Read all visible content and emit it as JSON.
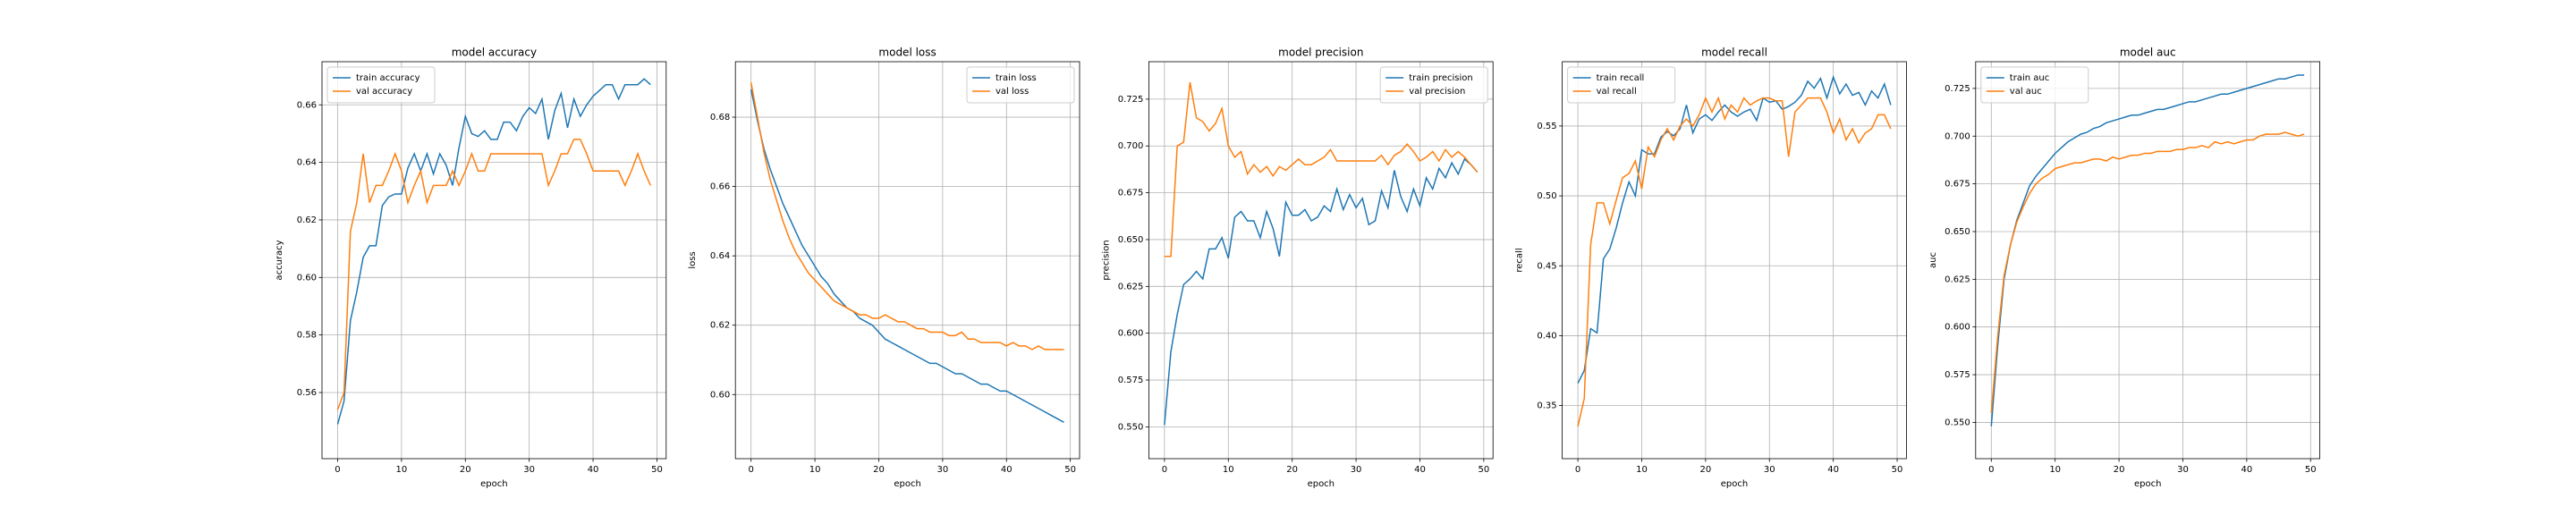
{
  "chart_data": [
    {
      "type": "line",
      "title": "model accuracy",
      "xlabel": "epoch",
      "ylabel": "accuracy",
      "x": [
        0,
        1,
        2,
        3,
        4,
        5,
        6,
        7,
        8,
        9,
        10,
        11,
        12,
        13,
        14,
        15,
        16,
        17,
        18,
        19,
        20,
        21,
        22,
        23,
        24,
        25,
        26,
        27,
        28,
        29,
        30,
        31,
        32,
        33,
        34,
        35,
        36,
        37,
        38,
        39,
        40,
        41,
        42,
        43,
        44,
        45,
        46,
        47,
        48,
        49
      ],
      "series": [
        {
          "name": "train accuracy",
          "color": "#1f77b4",
          "values": [
            0.549,
            0.557,
            0.585,
            0.595,
            0.607,
            0.611,
            0.611,
            0.625,
            0.628,
            0.629,
            0.629,
            0.638,
            0.643,
            0.637,
            0.643,
            0.636,
            0.643,
            0.639,
            0.632,
            0.645,
            0.656,
            0.65,
            0.649,
            0.651,
            0.648,
            0.648,
            0.654,
            0.654,
            0.651,
            0.656,
            0.659,
            0.657,
            0.662,
            0.648,
            0.658,
            0.664,
            0.652,
            0.662,
            0.656,
            0.66,
            0.663,
            0.665,
            0.667,
            0.667,
            0.662,
            0.667,
            0.667,
            0.667,
            0.669,
            0.667
          ]
        },
        {
          "name": "val accuracy",
          "color": "#ff7f0e",
          "values": [
            0.554,
            0.56,
            0.616,
            0.626,
            0.643,
            0.626,
            0.632,
            0.632,
            0.637,
            0.643,
            0.637,
            0.626,
            0.632,
            0.637,
            0.626,
            0.632,
            0.632,
            0.632,
            0.637,
            0.632,
            0.637,
            0.643,
            0.637,
            0.637,
            0.643,
            0.643,
            0.643,
            0.643,
            0.643,
            0.643,
            0.643,
            0.643,
            0.643,
            0.632,
            0.637,
            0.643,
            0.643,
            0.648,
            0.648,
            0.643,
            0.637,
            0.637,
            0.637,
            0.637,
            0.637,
            0.632,
            0.637,
            0.643,
            0.637,
            0.632
          ]
        }
      ],
      "xlim": [
        -2.45,
        51.45
      ],
      "xticks": [
        0,
        10,
        20,
        30,
        40,
        50
      ],
      "ylim": [
        0.537,
        0.675
      ],
      "yticks": [
        0.56,
        0.58,
        {
          "value": 0.6,
          "label": "0.60"
        },
        0.62,
        0.64,
        0.66
      ],
      "grid": true,
      "legend": "upper left"
    },
    {
      "type": "line",
      "title": "model loss",
      "xlabel": "epoch",
      "ylabel": "loss",
      "x": [
        0,
        1,
        2,
        3,
        4,
        5,
        6,
        7,
        8,
        9,
        10,
        11,
        12,
        13,
        14,
        15,
        16,
        17,
        18,
        19,
        20,
        21,
        22,
        23,
        24,
        25,
        26,
        27,
        28,
        29,
        30,
        31,
        32,
        33,
        34,
        35,
        36,
        37,
        38,
        39,
        40,
        41,
        42,
        43,
        44,
        45,
        46,
        47,
        48,
        49
      ],
      "series": [
        {
          "name": "train loss",
          "color": "#1f77b4",
          "values": [
            0.688,
            0.679,
            0.671,
            0.665,
            0.66,
            0.655,
            0.651,
            0.647,
            0.643,
            0.64,
            0.637,
            0.634,
            0.632,
            0.629,
            0.627,
            0.625,
            0.624,
            0.622,
            0.621,
            0.62,
            0.618,
            0.616,
            0.615,
            0.614,
            0.613,
            0.612,
            0.611,
            0.61,
            0.609,
            0.609,
            0.608,
            0.607,
            0.606,
            0.606,
            0.605,
            0.604,
            0.603,
            0.603,
            0.602,
            0.601,
            0.601,
            0.6,
            0.599,
            0.598,
            0.597,
            0.596,
            0.595,
            0.594,
            0.593,
            0.592
          ]
        },
        {
          "name": "val loss",
          "color": "#ff7f0e",
          "values": [
            0.69,
            0.68,
            0.67,
            0.662,
            0.656,
            0.65,
            0.645,
            0.641,
            0.638,
            0.635,
            0.633,
            0.631,
            0.629,
            0.627,
            0.626,
            0.625,
            0.624,
            0.623,
            0.623,
            0.622,
            0.622,
            0.623,
            0.622,
            0.621,
            0.621,
            0.62,
            0.619,
            0.619,
            0.618,
            0.618,
            0.618,
            0.617,
            0.617,
            0.618,
            0.616,
            0.616,
            0.615,
            0.615,
            0.615,
            0.615,
            0.614,
            0.615,
            0.614,
            0.614,
            0.613,
            0.614,
            0.613,
            0.613,
            0.613,
            0.613
          ]
        }
      ],
      "xlim": [
        -2.45,
        51.45
      ],
      "xticks": [
        0,
        10,
        20,
        30,
        40,
        50
      ],
      "ylim": [
        0.5815,
        0.696
      ],
      "yticks": [
        {
          "value": 0.6,
          "label": "0.60"
        },
        0.62,
        0.64,
        0.66,
        0.68
      ],
      "grid": true,
      "legend": "upper right"
    },
    {
      "type": "line",
      "title": "model precision",
      "xlabel": "epoch",
      "ylabel": "precision",
      "x": [
        0,
        1,
        2,
        3,
        4,
        5,
        6,
        7,
        8,
        9,
        10,
        11,
        12,
        13,
        14,
        15,
        16,
        17,
        18,
        19,
        20,
        21,
        22,
        23,
        24,
        25,
        26,
        27,
        28,
        29,
        30,
        31,
        32,
        33,
        34,
        35,
        36,
        37,
        38,
        39,
        40,
        41,
        42,
        43,
        44,
        45,
        46,
        47,
        48,
        49
      ],
      "series": [
        {
          "name": "train precision",
          "color": "#1f77b4",
          "values": [
            0.551,
            0.59,
            0.61,
            0.626,
            0.629,
            0.633,
            0.629,
            0.645,
            0.645,
            0.651,
            0.64,
            0.662,
            0.665,
            0.66,
            0.66,
            0.651,
            0.665,
            0.656,
            0.641,
            0.67,
            0.663,
            0.663,
            0.666,
            0.66,
            0.662,
            0.668,
            0.665,
            0.677,
            0.666,
            0.674,
            0.667,
            0.672,
            0.658,
            0.66,
            0.676,
            0.667,
            0.687,
            0.673,
            0.665,
            0.677,
            0.668,
            0.683,
            0.677,
            0.688,
            0.683,
            0.691,
            0.685,
            0.693,
            0.69,
            0.686
          ]
        },
        {
          "name": "val precision",
          "color": "#ff7f0e",
          "values": [
            0.641,
            0.641,
            0.7,
            0.702,
            0.734,
            0.715,
            0.713,
            0.708,
            0.712,
            0.72,
            0.7,
            0.694,
            0.697,
            0.685,
            0.69,
            0.686,
            0.689,
            0.684,
            0.689,
            0.687,
            0.69,
            0.693,
            0.69,
            0.69,
            0.692,
            0.694,
            0.698,
            0.692,
            0.692,
            0.692,
            0.692,
            0.692,
            0.692,
            0.692,
            0.695,
            0.69,
            0.695,
            0.697,
            0.701,
            0.697,
            0.692,
            0.694,
            0.697,
            0.692,
            0.698,
            0.694,
            0.697,
            0.694,
            0.69,
            0.686
          ]
        }
      ],
      "xlim": [
        -2.45,
        51.45
      ],
      "xticks": [
        0,
        10,
        20,
        30,
        40,
        50
      ],
      "ylim": [
        0.533,
        0.745
      ],
      "yticks": [
        {
          "value": 0.55,
          "label": "0.550"
        },
        0.575,
        {
          "value": 0.6,
          "label": "0.600"
        },
        0.625,
        {
          "value": 0.65,
          "label": "0.650"
        },
        0.675,
        {
          "value": 0.7,
          "label": "0.700"
        },
        0.725
      ],
      "grid": true,
      "legend": "upper right"
    },
    {
      "type": "line",
      "title": "model recall",
      "xlabel": "epoch",
      "ylabel": "recall",
      "x": [
        0,
        1,
        2,
        3,
        4,
        5,
        6,
        7,
        8,
        9,
        10,
        11,
        12,
        13,
        14,
        15,
        16,
        17,
        18,
        19,
        20,
        21,
        22,
        23,
        24,
        25,
        26,
        27,
        28,
        29,
        30,
        31,
        32,
        33,
        34,
        35,
        36,
        37,
        38,
        39,
        40,
        41,
        42,
        43,
        44,
        45,
        46,
        47,
        48,
        49
      ],
      "series": [
        {
          "name": "train recall",
          "color": "#1f77b4",
          "values": [
            0.366,
            0.375,
            0.405,
            0.402,
            0.455,
            0.462,
            0.477,
            0.495,
            0.51,
            0.5,
            0.533,
            0.53,
            0.53,
            0.542,
            0.546,
            0.543,
            0.548,
            0.565,
            0.545,
            0.555,
            0.558,
            0.554,
            0.56,
            0.565,
            0.56,
            0.557,
            0.56,
            0.562,
            0.554,
            0.57,
            0.567,
            0.568,
            0.562,
            0.564,
            0.567,
            0.572,
            0.582,
            0.577,
            0.584,
            0.57,
            0.585,
            0.573,
            0.58,
            0.572,
            0.574,
            0.565,
            0.575,
            0.57,
            0.58,
            0.565
          ]
        },
        {
          "name": "val recall",
          "color": "#ff7f0e",
          "values": [
            0.335,
            0.355,
            0.465,
            0.495,
            0.495,
            0.48,
            0.497,
            0.513,
            0.516,
            0.525,
            0.505,
            0.535,
            0.528,
            0.54,
            0.548,
            0.54,
            0.55,
            0.555,
            0.55,
            0.558,
            0.57,
            0.56,
            0.57,
            0.555,
            0.565,
            0.56,
            0.57,
            0.565,
            0.568,
            0.57,
            0.57,
            0.568,
            0.568,
            0.528,
            0.56,
            0.565,
            0.57,
            0.57,
            0.57,
            0.56,
            0.545,
            0.555,
            0.54,
            0.548,
            0.538,
            0.545,
            0.548,
            0.558,
            0.558,
            0.548
          ]
        }
      ],
      "xlim": [
        -2.45,
        51.45
      ],
      "xticks": [
        0,
        10,
        20,
        30,
        40,
        50
      ],
      "ylim": [
        0.312,
        0.596
      ],
      "yticks": [
        0.35,
        {
          "value": 0.4,
          "label": "0.40"
        },
        0.45,
        {
          "value": 0.5,
          "label": "0.50"
        },
        0.55
      ],
      "grid": true,
      "legend": "upper left"
    },
    {
      "type": "line",
      "title": "model auc",
      "xlabel": "epoch",
      "ylabel": "auc",
      "x": [
        0,
        1,
        2,
        3,
        4,
        5,
        6,
        7,
        8,
        9,
        10,
        11,
        12,
        13,
        14,
        15,
        16,
        17,
        18,
        19,
        20,
        21,
        22,
        23,
        24,
        25,
        26,
        27,
        28,
        29,
        30,
        31,
        32,
        33,
        34,
        35,
        36,
        37,
        38,
        39,
        40,
        41,
        42,
        43,
        44,
        45,
        46,
        47,
        48,
        49
      ],
      "series": [
        {
          "name": "train auc",
          "color": "#1f77b4",
          "values": [
            0.548,
            0.59,
            0.625,
            0.643,
            0.656,
            0.665,
            0.674,
            0.679,
            0.683,
            0.687,
            0.691,
            0.694,
            0.697,
            0.699,
            0.701,
            0.702,
            0.704,
            0.705,
            0.707,
            0.708,
            0.709,
            0.71,
            0.711,
            0.711,
            0.712,
            0.713,
            0.714,
            0.714,
            0.715,
            0.716,
            0.717,
            0.718,
            0.718,
            0.719,
            0.72,
            0.721,
            0.722,
            0.722,
            0.723,
            0.724,
            0.725,
            0.726,
            0.727,
            0.728,
            0.729,
            0.73,
            0.73,
            0.731,
            0.732,
            0.732
          ]
        },
        {
          "name": "val auc",
          "color": "#ff7f0e",
          "values": [
            0.555,
            0.595,
            0.627,
            0.643,
            0.655,
            0.663,
            0.67,
            0.675,
            0.678,
            0.68,
            0.683,
            0.684,
            0.685,
            0.686,
            0.686,
            0.687,
            0.688,
            0.688,
            0.687,
            0.689,
            0.688,
            0.689,
            0.69,
            0.69,
            0.691,
            0.691,
            0.692,
            0.692,
            0.692,
            0.693,
            0.693,
            0.694,
            0.694,
            0.695,
            0.694,
            0.697,
            0.696,
            0.697,
            0.696,
            0.697,
            0.698,
            0.698,
            0.7,
            0.701,
            0.701,
            0.701,
            0.702,
            0.701,
            0.7,
            0.701
          ]
        }
      ],
      "xlim": [
        -2.45,
        51.45
      ],
      "xticks": [
        0,
        10,
        20,
        30,
        40,
        50
      ],
      "ylim": [
        0.531,
        0.739
      ],
      "yticks": [
        {
          "value": 0.55,
          "label": "0.550"
        },
        0.575,
        {
          "value": 0.6,
          "label": "0.600"
        },
        0.625,
        {
          "value": 0.65,
          "label": "0.650"
        },
        0.675,
        {
          "value": 0.7,
          "label": "0.700"
        },
        0.725
      ],
      "grid": true,
      "legend": "upper left"
    }
  ]
}
